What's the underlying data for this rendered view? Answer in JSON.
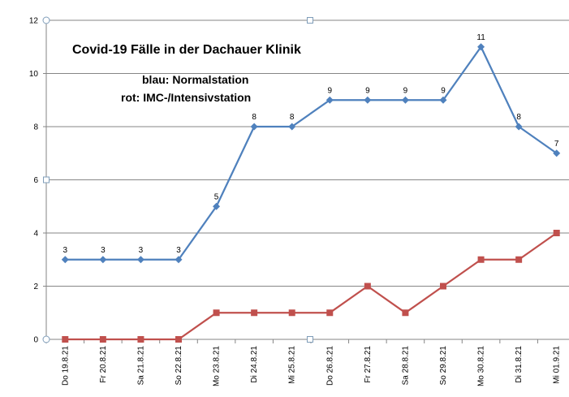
{
  "chart_data": {
    "type": "line",
    "title": "Covid-19 Fälle in  der Dachauer Klinik",
    "subtitle_lines": [
      "blau: Normalstation",
      "rot: IMC-/Intensivstation"
    ],
    "categories": [
      "Do 19.8.21",
      "Fr 20.8.21",
      "Sa 21.8.21",
      "So 22.8.21",
      "Mo 23.8.21",
      "Di 24.8.21",
      "Mi 25.8.21",
      "Do 26.8.21",
      "Fr 27.8.21",
      "Sa 28.8.21",
      "So 29.8.21",
      "Mo 30.8.21",
      "Di 31.8.21",
      "Mi 01.9.21"
    ],
    "series": [
      {
        "values": [
          3,
          3,
          3,
          3,
          5,
          8,
          8,
          9,
          9,
          9,
          9,
          11,
          8,
          7
        ],
        "color": "#4f81bd",
        "marker": "diamond",
        "data_labels": true
      },
      {
        "values": [
          0,
          0,
          0,
          0,
          1,
          1,
          1,
          1,
          2,
          1,
          2,
          3,
          3,
          4
        ],
        "color": "#c0504d",
        "marker": "square",
        "data_labels": false
      }
    ],
    "yticks": [
      0,
      2,
      4,
      6,
      8,
      10,
      12
    ],
    "ylim": [
      0,
      12
    ],
    "xlabel": "",
    "ylabel": "",
    "grid": true,
    "legend": "none",
    "gridline_color": "#868686"
  }
}
